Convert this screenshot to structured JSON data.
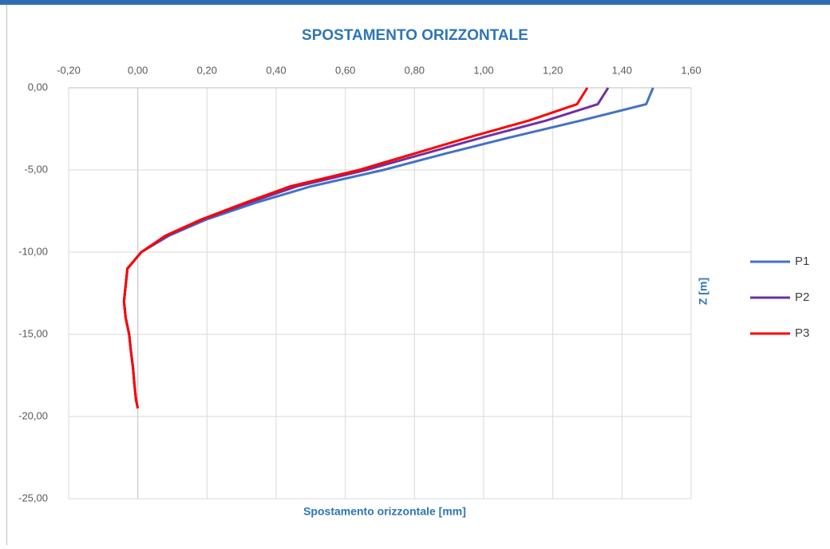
{
  "chart_data": {
    "type": "line",
    "title": "SPOSTAMENTO ORIZZONTALE",
    "x_label": "Spostamento orizzontale [mm]",
    "y_label": "Z [m]",
    "z": [
      0,
      -1,
      -2,
      -3,
      -4,
      -5,
      -6,
      -7,
      -8,
      -9,
      -10,
      -11,
      -12,
      -13,
      -14,
      -15,
      -16,
      -17,
      -18,
      -19,
      -19.5
    ],
    "series": [
      {
        "name": "P1",
        "color": "#4472c4",
        "values": [
          1.49,
          1.47,
          1.28,
          1.08,
          0.89,
          0.71,
          0.5,
          0.34,
          0.2,
          0.09,
          0.01,
          -0.03,
          -0.035,
          -0.04,
          -0.035,
          -0.025,
          -0.02,
          -0.014,
          -0.01,
          -0.005,
          0
        ]
      },
      {
        "name": "P2",
        "color": "#7030a0",
        "values": [
          1.36,
          1.33,
          1.18,
          1.0,
          0.83,
          0.66,
          0.46,
          0.32,
          0.19,
          0.085,
          0.01,
          -0.03,
          -0.035,
          -0.04,
          -0.035,
          -0.025,
          -0.02,
          -0.014,
          -0.01,
          -0.005,
          0
        ]
      },
      {
        "name": "P3",
        "color": "#ff0000",
        "values": [
          1.3,
          1.27,
          1.13,
          0.96,
          0.8,
          0.64,
          0.44,
          0.31,
          0.185,
          0.08,
          0.01,
          -0.03,
          -0.035,
          -0.04,
          -0.035,
          -0.025,
          -0.02,
          -0.014,
          -0.01,
          -0.005,
          0
        ]
      }
    ],
    "xlim": [
      -0.2,
      1.6
    ],
    "xticks": [
      {
        "value": -0.2,
        "label": "-0,20"
      },
      {
        "value": 0,
        "label": "0,00"
      },
      {
        "value": 0.2,
        "label": "0,20"
      },
      {
        "value": 0.4,
        "label": "0,40"
      },
      {
        "value": 0.6,
        "label": "0,60"
      },
      {
        "value": 0.8,
        "label": "0,80"
      },
      {
        "value": 1.0,
        "label": "1,00"
      },
      {
        "value": 1.2,
        "label": "1,20"
      },
      {
        "value": 1.4,
        "label": "1,40"
      },
      {
        "value": 1.6,
        "label": "1,60"
      }
    ],
    "ylim": [
      -25,
      0
    ],
    "yticks": [
      {
        "value": 0,
        "label": "0,00"
      },
      {
        "value": -5,
        "label": "-5,00"
      },
      {
        "value": -10,
        "label": "-10,00"
      },
      {
        "value": -15,
        "label": "-15,00"
      },
      {
        "value": -20,
        "label": "-20,00"
      },
      {
        "value": -25,
        "label": "-25,00"
      }
    ],
    "grid": true,
    "legend": "right"
  }
}
